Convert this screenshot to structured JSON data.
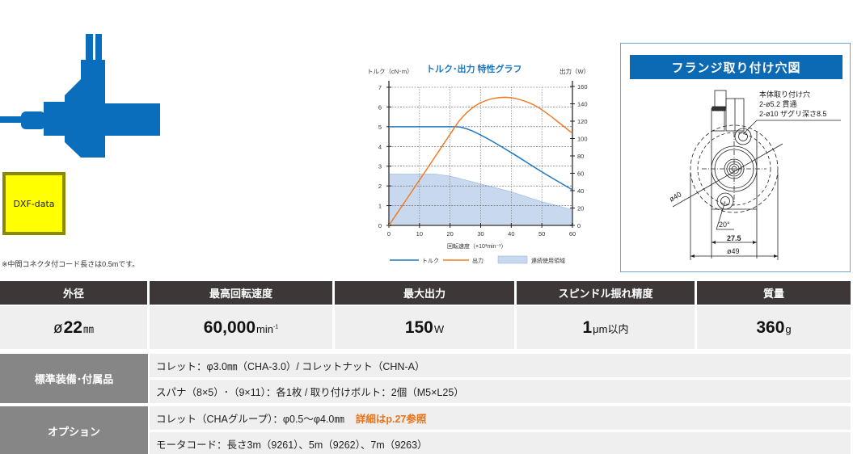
{
  "product": {
    "image_alt": "spindle motor side view",
    "dxf_button_label": "DXF-data",
    "cord_note": "※中間コネクタ付コード長さは0.5mです。",
    "product_color": "#0a6ebd"
  },
  "chart_data": {
    "type": "line",
    "title": "トルク･出力 特性グラフ",
    "xlabel": "回転速度（×10³min⁻¹）",
    "ylabel_left": "トルク（cN･m）",
    "ylabel_right": "出力（W）",
    "x_ticks": [
      0,
      10,
      20,
      30,
      40,
      50,
      60
    ],
    "y_left_ticks": [
      0,
      1,
      2,
      3,
      4,
      5,
      6,
      7
    ],
    "y_right_ticks": [
      0,
      20,
      40,
      60,
      80,
      100,
      120,
      140,
      160
    ],
    "xlim": [
      0,
      60
    ],
    "ylim_left": [
      0,
      7
    ],
    "ylim_right": [
      0,
      160
    ],
    "grid": true,
    "legend_position": "bottom",
    "series": [
      {
        "name": "トルク",
        "axis": "left",
        "color": "#1f78c1",
        "x": [
          0,
          10,
          20,
          24,
          30,
          40,
          50,
          60
        ],
        "values": [
          5.0,
          5.0,
          5.0,
          5.0,
          4.6,
          3.7,
          2.7,
          1.8
        ]
      },
      {
        "name": "出力",
        "axis": "right",
        "color": "#ef7b26",
        "x": [
          0,
          10,
          20,
          24,
          30,
          38,
          45,
          50,
          60
        ],
        "values": [
          0,
          52,
          105,
          126,
          143,
          149,
          143,
          134,
          106
        ]
      },
      {
        "name": "連続使用領域",
        "axis": "left",
        "type": "area",
        "color": "#c8d8ef",
        "x": [
          0,
          10,
          15,
          20,
          30,
          40,
          50,
          60
        ],
        "values": [
          2.6,
          2.6,
          2.6,
          2.5,
          2.1,
          1.7,
          1.2,
          0.8
        ]
      }
    ]
  },
  "flange": {
    "title": "フランジ取り付け穴図",
    "note_lines": [
      "本体取り付け穴",
      "2-ø5.2 貫通",
      "2-ø10 ザグリ深さ8.5"
    ],
    "dim_pcd": "ø40",
    "dim_angle": "20°",
    "dim_width": "27.5",
    "dim_outer": "ø49"
  },
  "specs": {
    "headers": [
      "外径",
      "最高回転速度",
      "最大出力",
      "スピンドル振れ精度",
      "質量"
    ],
    "values": [
      {
        "prefix": "ø",
        "number": "22",
        "unit": "㎜"
      },
      {
        "prefix": "",
        "number": "60,000",
        "unit": "min",
        "unit_sup": "-1"
      },
      {
        "prefix": "",
        "number": "150",
        "unit": "W"
      },
      {
        "prefix": "",
        "number": "1",
        "unit": "μm以内"
      },
      {
        "prefix": "",
        "number": "360",
        "unit": "g"
      }
    ]
  },
  "accessories": {
    "standard": {
      "label": "標準装備･付属品",
      "lines": [
        "コレット：φ3.0㎜（CHA-3.0）/ コレットナット（CHN-A）",
        "スパナ（8×5）･（9×11）：各1枚 / 取り付けボルト：2個（M5×L25）"
      ]
    },
    "option": {
      "label": "オプション",
      "lines": [
        "コレット（CHAグループ）：φ0.5～φ4.0㎜",
        "モータコード：長さ3m（9261）、5m（9262）、7m（9263）"
      ],
      "link_text": "詳細はp.27参照",
      "link_color": "#e8731a"
    }
  },
  "colors": {
    "header_bg": "#3d3837",
    "cell_bg": "#efefef",
    "label_bg": "#868686",
    "flange_title_bg": "#0b6ab3"
  }
}
